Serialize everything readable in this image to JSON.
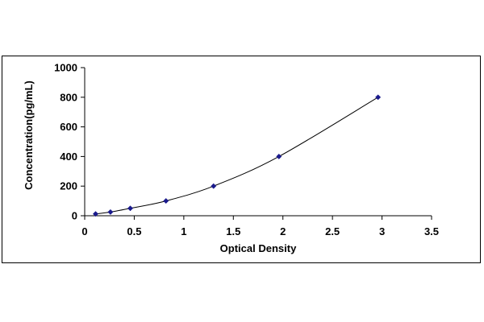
{
  "chart_data": {
    "type": "scatter",
    "title": "",
    "xlabel": "Optical Density",
    "ylabel": "Concentration(pg/mL)",
    "xlim": [
      0,
      3.5
    ],
    "ylim": [
      0,
      1000
    ],
    "x_ticks": [
      0,
      0.5,
      1,
      1.5,
      2,
      2.5,
      3,
      3.5
    ],
    "y_ticks": [
      0,
      200,
      400,
      600,
      800,
      1000
    ],
    "x_tick_labels": [
      "0",
      "0.5",
      "1",
      "1.5",
      "2",
      "2.5",
      "3",
      "3.5"
    ],
    "y_tick_labels": [
      "0",
      "200",
      "400",
      "600",
      "800",
      "1000"
    ],
    "grid": false,
    "legend": "none",
    "series": [
      {
        "x": [
          0.11,
          0.26,
          0.46,
          0.82,
          1.3,
          1.96,
          2.96
        ],
        "y": [
          12.5,
          25,
          50,
          100,
          200,
          400,
          800
        ],
        "marker": "diamond",
        "color": "#1a1a8c",
        "line": "smooth fit",
        "line_color": "#000000"
      }
    ]
  }
}
